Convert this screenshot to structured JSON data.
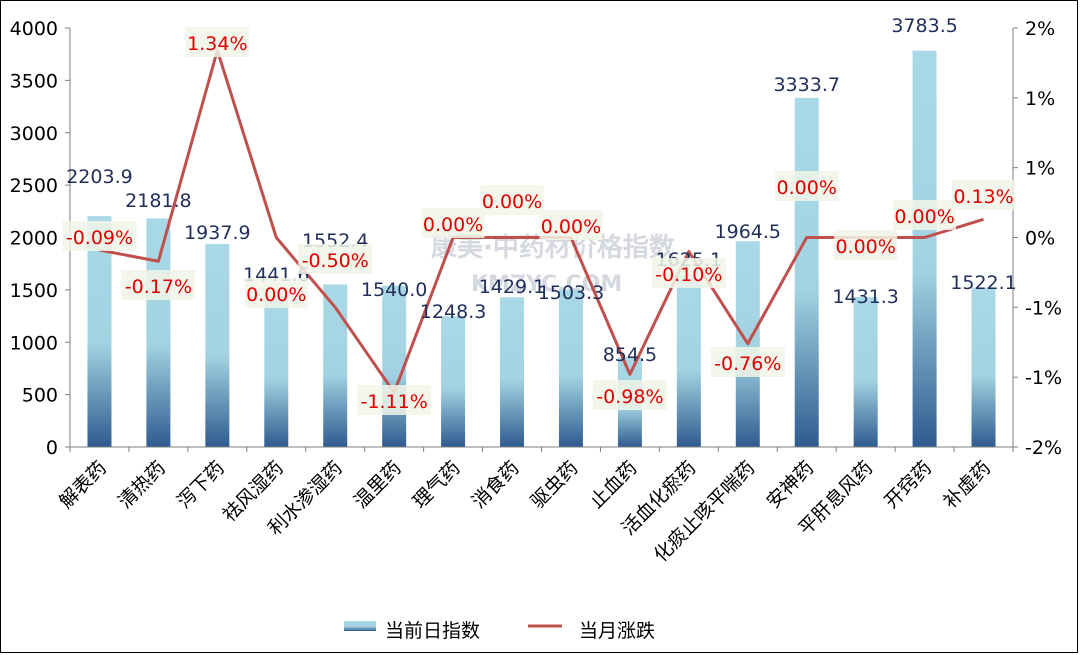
{
  "chart_data": {
    "type": "bar+line",
    "categories": [
      "解表药",
      "清热药",
      "泻下药",
      "祛风湿药",
      "利水渗湿药",
      "温里药",
      "理气药",
      "消食药",
      "驱虫药",
      "止血药",
      "活血化瘀药",
      "化痰止咳平喘药",
      "安神药",
      "平肝息风药",
      "开窍药",
      "补虚药"
    ],
    "series": [
      {
        "name": "当前日指数",
        "kind": "bar",
        "axis": "left",
        "values": [
          2203.9,
          2181.8,
          1937.9,
          1441.6,
          1552.4,
          1540.0,
          1248.3,
          1429.1,
          1503.3,
          854.5,
          1625.1,
          1964.5,
          3333.7,
          1431.3,
          3783.5,
          1522.1
        ],
        "labels": [
          "2203.9",
          "2181.8",
          "1937.9",
          "1441.6",
          "1552.4",
          "1540.0",
          "1248.3",
          "1429.1",
          "1503.3",
          "854.5",
          "1625.1",
          "1964.5",
          "3333.7",
          "1431.3",
          "3783.5",
          "1522.1"
        ]
      },
      {
        "name": "当月涨跌",
        "kind": "line",
        "axis": "right",
        "values": [
          -0.09,
          -0.17,
          1.34,
          0.0,
          -0.5,
          -1.11,
          0.0,
          0.0,
          0.0,
          -0.98,
          -0.1,
          -0.76,
          0.0,
          0.0,
          0.0,
          0.13
        ],
        "labels": [
          "-0.09%",
          "-0.17%",
          "1.34%",
          "0.00%",
          "-0.50%",
          "-1.11%",
          "0.00%",
          "0.00%",
          "0.00%",
          "-0.98%",
          "-0.10%",
          "-0.76%",
          "0.00%",
          "0.00%",
          "0.00%",
          "0.13%"
        ]
      }
    ],
    "y_left": {
      "min": 0,
      "max": 4000,
      "ticks": [
        "0",
        "500",
        "1000",
        "1500",
        "2000",
        "2500",
        "3000",
        "3500",
        "4000"
      ]
    },
    "y_right": {
      "min": -1.5,
      "max": 1.5,
      "ticks": [
        "-2%",
        "-1%",
        "-1%",
        "0%",
        "1%",
        "1%",
        "2%"
      ]
    },
    "grid": false,
    "legend_position": "bottom",
    "colors": {
      "bar_top": "#a9d9e6",
      "bar_bottom": "#2e5b8f",
      "line": "#c0504d",
      "pct_label": "#e00000",
      "bar_label": "#1f2f5a"
    }
  },
  "watermark": {
    "text": "康美·中药材价格指数",
    "sub": "KMZYC.COM"
  }
}
